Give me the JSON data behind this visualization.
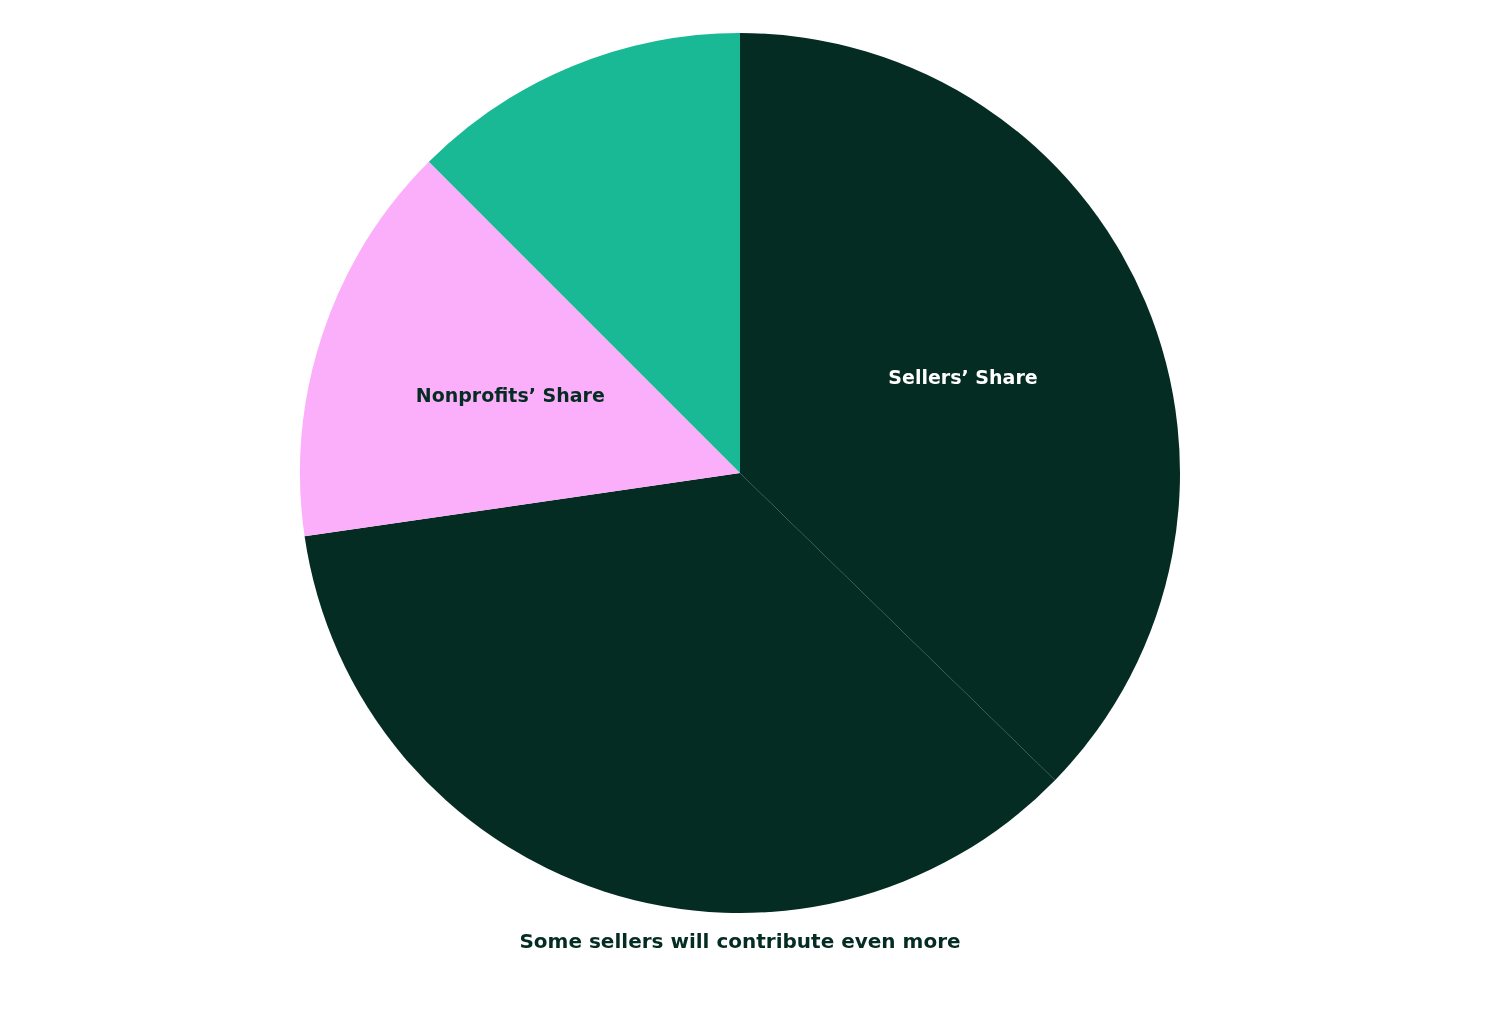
{
  "chart_data": {
    "type": "pie",
    "categories": [
      "Sellers’ Share",
      null,
      "Nonprofits’ Share",
      null
    ],
    "values": [
      37.3,
      35.4,
      14.8,
      12.5
    ],
    "colors": [
      "#052c22",
      "#052c22",
      "#fbaffa",
      "#18b994"
    ],
    "annotations": [
      "Some sellers will contribute even more"
    ],
    "legend": false
  }
}
